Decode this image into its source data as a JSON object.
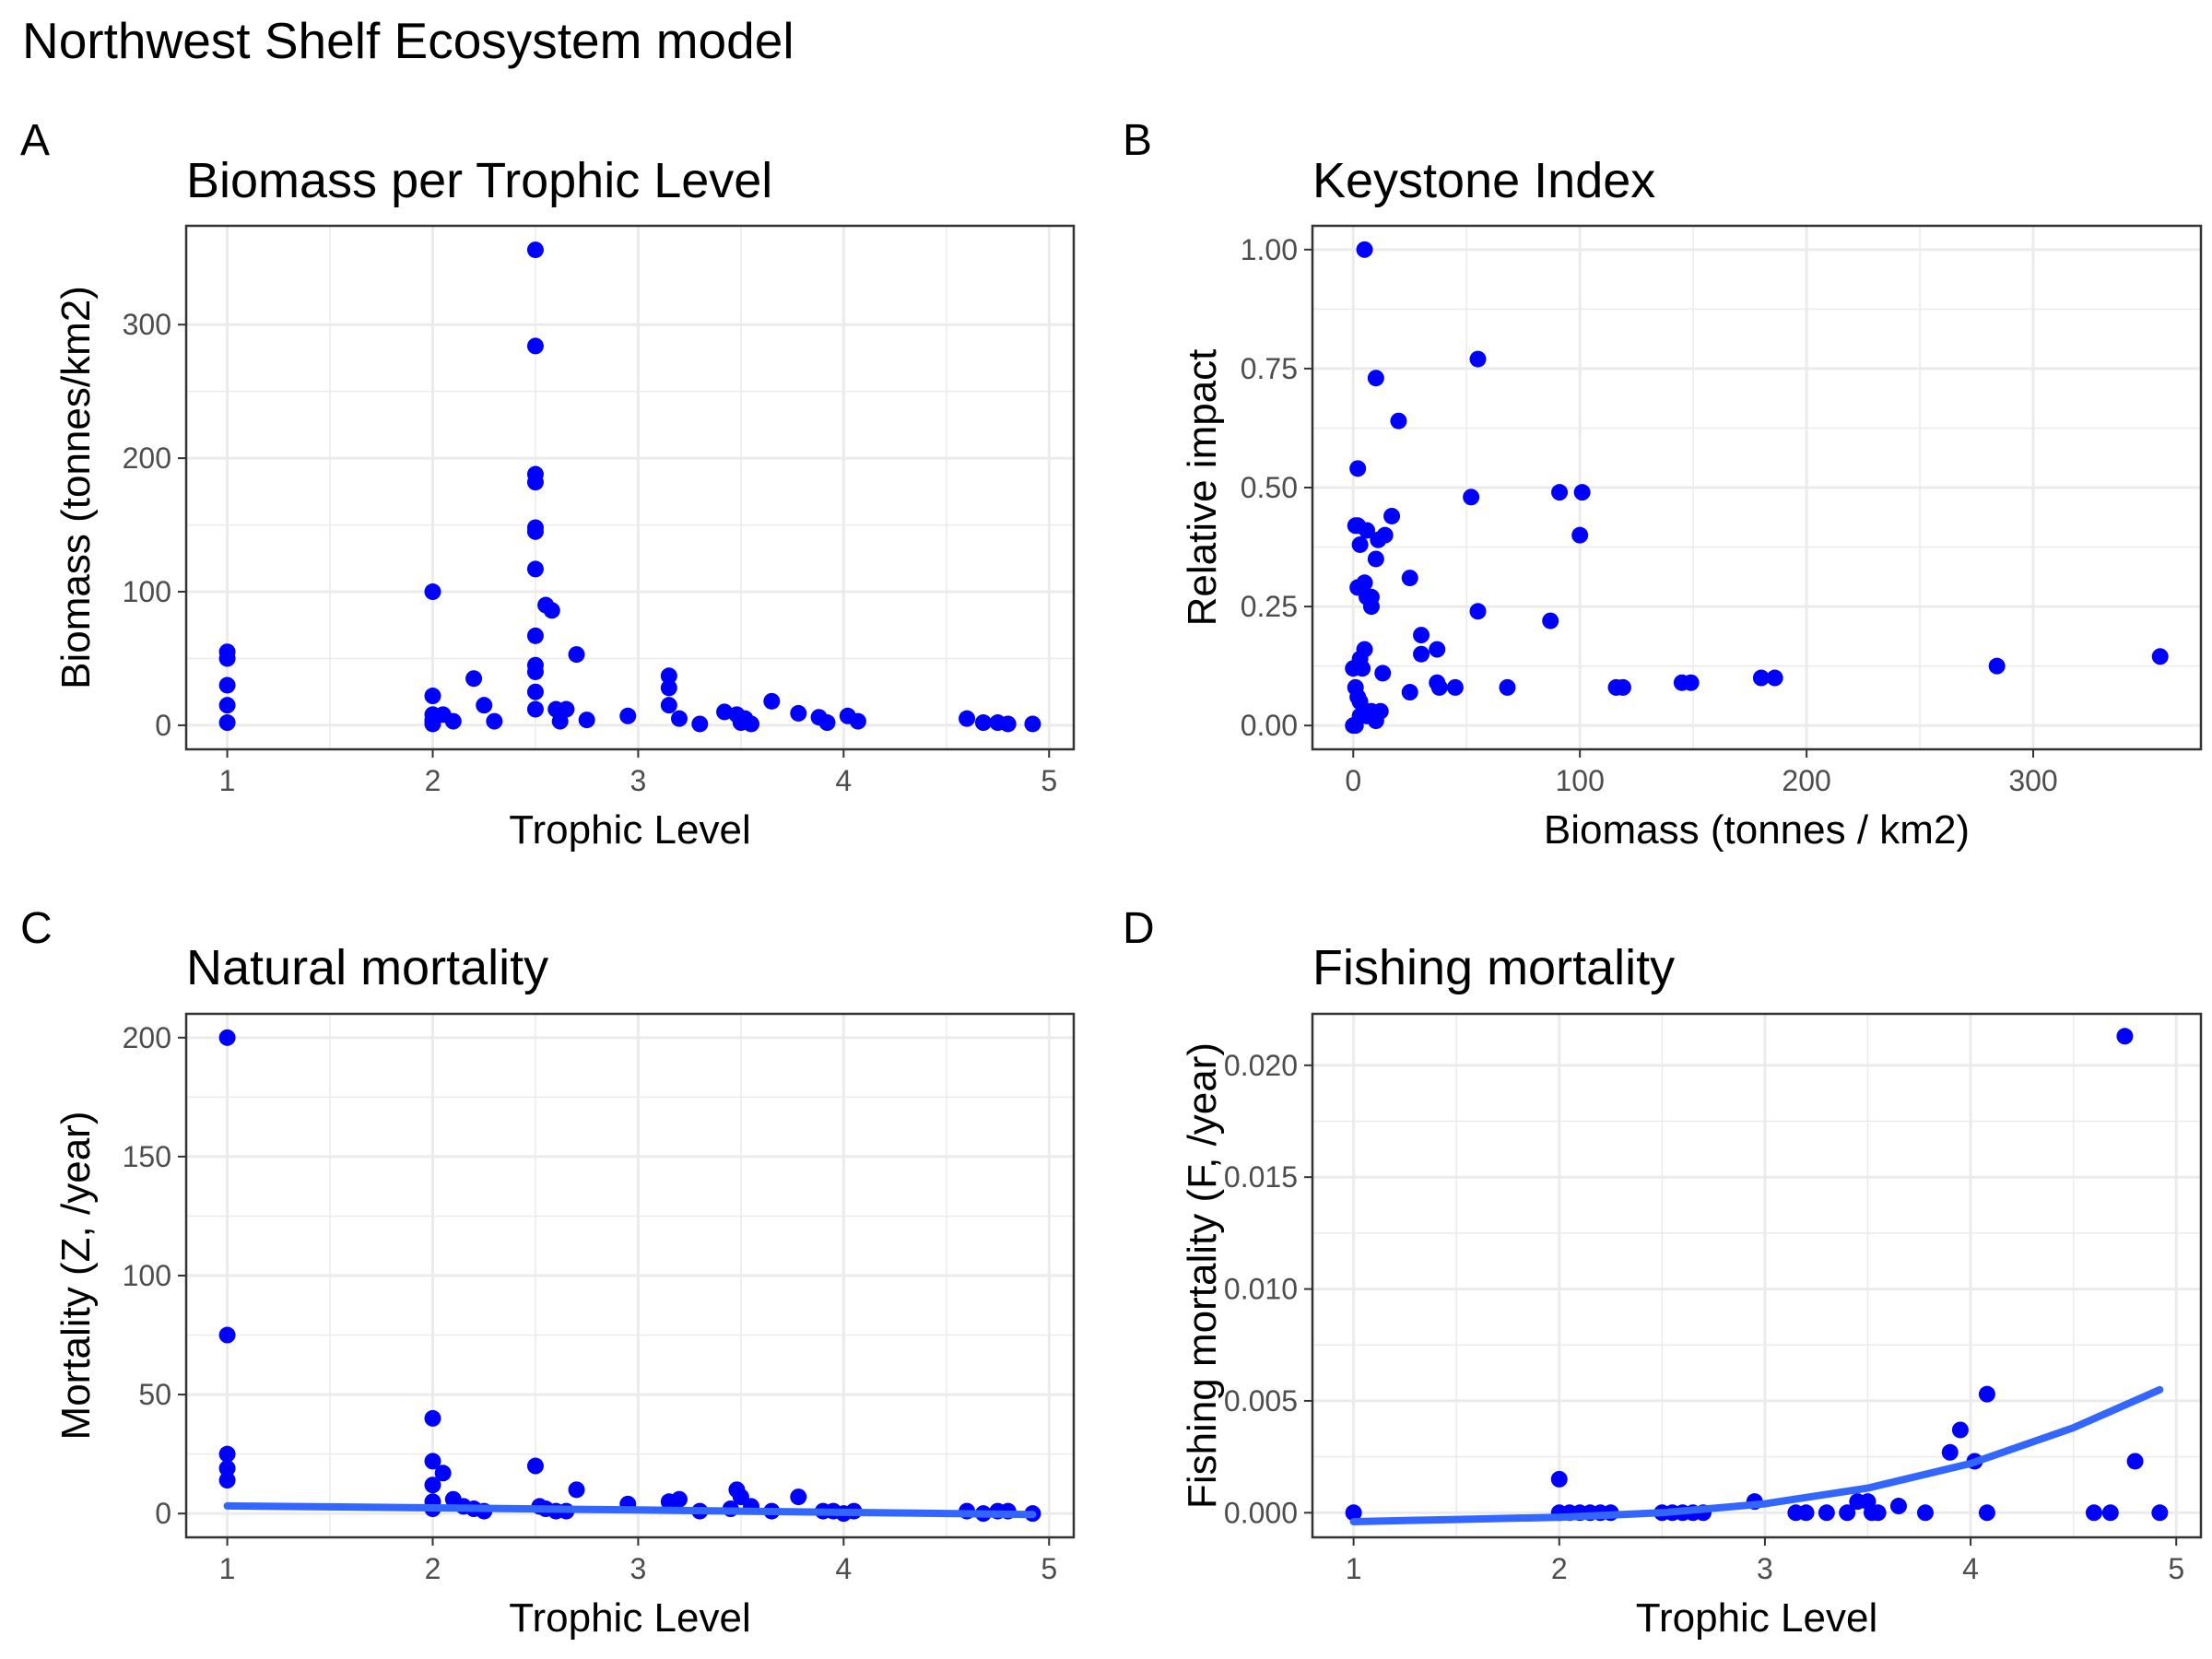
{
  "title": "Northwest Shelf Ecosystem model",
  "colors": {
    "points": "#0000ff",
    "smooth": "#3366ff",
    "grid": "#ebebeb",
    "border": "#333333"
  },
  "chart_data": [
    {
      "tag": "A",
      "type": "scatter",
      "title": "Biomass per Trophic Level",
      "xlabel": "Trophic Level",
      "ylabel": "Biomass (tonnes/km2)",
      "xlim": [
        0.8,
        5.12
      ],
      "ylim": [
        -18,
        374
      ],
      "xticks": [
        1,
        2,
        3,
        4,
        5
      ],
      "yticks": [
        0,
        100,
        200,
        300
      ],
      "x": [
        1,
        1,
        1,
        1,
        1,
        2,
        2,
        2,
        2,
        2,
        2,
        2.05,
        2.1,
        2.2,
        2.25,
        2.3,
        2.5,
        2.5,
        2.5,
        2.5,
        2.5,
        2.5,
        2.5,
        2.5,
        2.5,
        2.5,
        2.5,
        2.5,
        2.55,
        2.58,
        2.6,
        2.62,
        2.65,
        2.7,
        2.75,
        2.95,
        3.15,
        3.15,
        3.15,
        3.2,
        3.3,
        3.42,
        3.48,
        3.5,
        3.52,
        3.55,
        3.65,
        3.78,
        3.88,
        3.92,
        4.02,
        4.07,
        4.6,
        4.68,
        4.75,
        4.8,
        4.92
      ],
      "y": [
        55,
        50,
        30,
        15,
        2,
        100,
        22,
        8,
        4,
        2,
        1,
        8,
        3,
        35,
        15,
        3,
        356,
        284,
        188,
        182,
        148,
        145,
        117,
        67,
        45,
        40,
        25,
        12,
        90,
        86,
        12,
        3,
        12,
        53,
        4,
        7,
        37,
        28,
        15,
        5,
        1,
        10,
        8,
        2,
        5,
        1,
        18,
        9,
        6,
        2,
        7,
        3,
        5,
        2,
        2,
        1,
        1
      ],
      "smooth": []
    },
    {
      "tag": "B",
      "type": "scatter",
      "title": "Keystone Index",
      "xlabel": "Biomass (tonnes / km2)",
      "ylabel": "Relative impact",
      "xlim": [
        -18,
        374
      ],
      "ylim": [
        -0.05,
        1.05
      ],
      "xticks": [
        0,
        100,
        200,
        300
      ],
      "yticks": [
        0,
        0.25,
        0.5,
        0.75,
        1.0
      ],
      "ytick_labels": [
        "0.00",
        "0.25",
        "0.50",
        "0.75",
        "1.00"
      ],
      "x": [
        5,
        2,
        55,
        10,
        20,
        1,
        52,
        91,
        101,
        2,
        6,
        14,
        11,
        17,
        3,
        10,
        25,
        5,
        6,
        8,
        55,
        87,
        100,
        30,
        37,
        8,
        2,
        13,
        30,
        5,
        37,
        3,
        38,
        45,
        68,
        4,
        0,
        1,
        2,
        3,
        8,
        6,
        1,
        10,
        25,
        12,
        3,
        116,
        119,
        145,
        149,
        180,
        186,
        284,
        356,
        0
      ],
      "y": [
        1.0,
        0.54,
        0.77,
        0.73,
        0.64,
        0.42,
        0.48,
        0.49,
        0.49,
        0.42,
        0.41,
        0.4,
        0.39,
        0.44,
        0.38,
        0.35,
        0.31,
        0.3,
        0.27,
        0.27,
        0.24,
        0.22,
        0.4,
        0.19,
        0.16,
        0.25,
        0.29,
        0.11,
        0.15,
        0.16,
        0.09,
        0.14,
        0.08,
        0.08,
        0.08,
        0.12,
        0.12,
        0.08,
        0.06,
        0.05,
        0.03,
        0.02,
        0.0,
        0.01,
        0.07,
        0.03,
        0.02,
        0.08,
        0.08,
        0.09,
        0.09,
        0.1,
        0.1,
        0.125,
        0.145,
        0.0
      ],
      "smooth": []
    },
    {
      "tag": "C",
      "type": "scatter",
      "title": "Natural mortality",
      "xlabel": "Trophic Level",
      "ylabel": "Mortality (Z, /year)",
      "xlim": [
        0.8,
        5.12
      ],
      "ylim": [
        -10,
        210
      ],
      "xticks": [
        1,
        2,
        3,
        4,
        5
      ],
      "yticks": [
        0,
        50,
        100,
        150,
        200
      ],
      "x": [
        1,
        1,
        1,
        1,
        1,
        2,
        2,
        2,
        2,
        2,
        2.05,
        2.1,
        2.15,
        2.2,
        2.25,
        2.5,
        2.52,
        2.55,
        2.6,
        2.65,
        2.7,
        2.95,
        3.15,
        3.2,
        3.3,
        3.45,
        3.48,
        3.5,
        3.55,
        3.65,
        3.78,
        3.9,
        3.95,
        4.0,
        4.05,
        4.6,
        4.68,
        4.75,
        4.8,
        4.92
      ],
      "y": [
        200,
        75,
        25,
        19,
        14,
        40,
        22,
        12,
        5,
        2,
        17,
        6,
        3,
        2,
        1,
        20,
        3,
        2,
        1,
        1,
        10,
        4,
        5,
        6,
        1,
        2,
        10,
        7,
        3,
        1,
        7,
        1,
        1,
        0,
        1,
        1,
        0,
        1,
        1,
        0
      ],
      "smooth": [
        [
          1.0,
          3.2
        ],
        [
          2.0,
          2.4
        ],
        [
          3.0,
          1.5
        ],
        [
          4.0,
          0.5
        ],
        [
          4.92,
          -0.4
        ]
      ]
    },
    {
      "tag": "D",
      "type": "scatter",
      "title": "Fishing mortality",
      "xlabel": "Trophic Level",
      "ylabel": "Fishing mortality (F, /year)",
      "xlim": [
        0.8,
        5.12
      ],
      "ylim": [
        -0.0011,
        0.0223
      ],
      "xticks": [
        1,
        2,
        3,
        4,
        5
      ],
      "yticks": [
        0,
        0.005,
        0.01,
        0.015,
        0.02
      ],
      "ytick_labels": [
        "0.000",
        "0.005",
        "0.010",
        "0.015",
        "0.020"
      ],
      "x": [
        1.0,
        2.0,
        2.0,
        2.05,
        2.1,
        2.15,
        2.2,
        2.25,
        2.5,
        2.55,
        2.6,
        2.65,
        2.7,
        2.95,
        3.15,
        3.2,
        3.3,
        3.4,
        3.45,
        3.5,
        3.52,
        3.55,
        3.65,
        3.78,
        3.9,
        3.95,
        4.02,
        4.08,
        4.08,
        4.6,
        4.68,
        4.75,
        4.8,
        4.92
      ],
      "y": [
        0.0,
        0.0015,
        0.0,
        0.0,
        0.0,
        0.0,
        0.0,
        0.0,
        0.0,
        0.0,
        0.0,
        0.0,
        0.0,
        0.0005,
        0.0,
        0.0,
        0.0,
        0.0,
        0.0005,
        0.0005,
        0.0,
        0.0,
        0.0003,
        0.0,
        0.0027,
        0.0037,
        0.0023,
        0.0053,
        0.0,
        0.0,
        0.0,
        0.0213,
        0.0023,
        0.0
      ],
      "smooth": [
        [
          1.0,
          -0.0004
        ],
        [
          1.5,
          -0.0003
        ],
        [
          2.0,
          -0.0002
        ],
        [
          2.5,
          0.0
        ],
        [
          3.0,
          0.0004
        ],
        [
          3.5,
          0.0011
        ],
        [
          4.0,
          0.0022
        ],
        [
          4.5,
          0.0038
        ],
        [
          4.92,
          0.0055
        ]
      ]
    }
  ]
}
